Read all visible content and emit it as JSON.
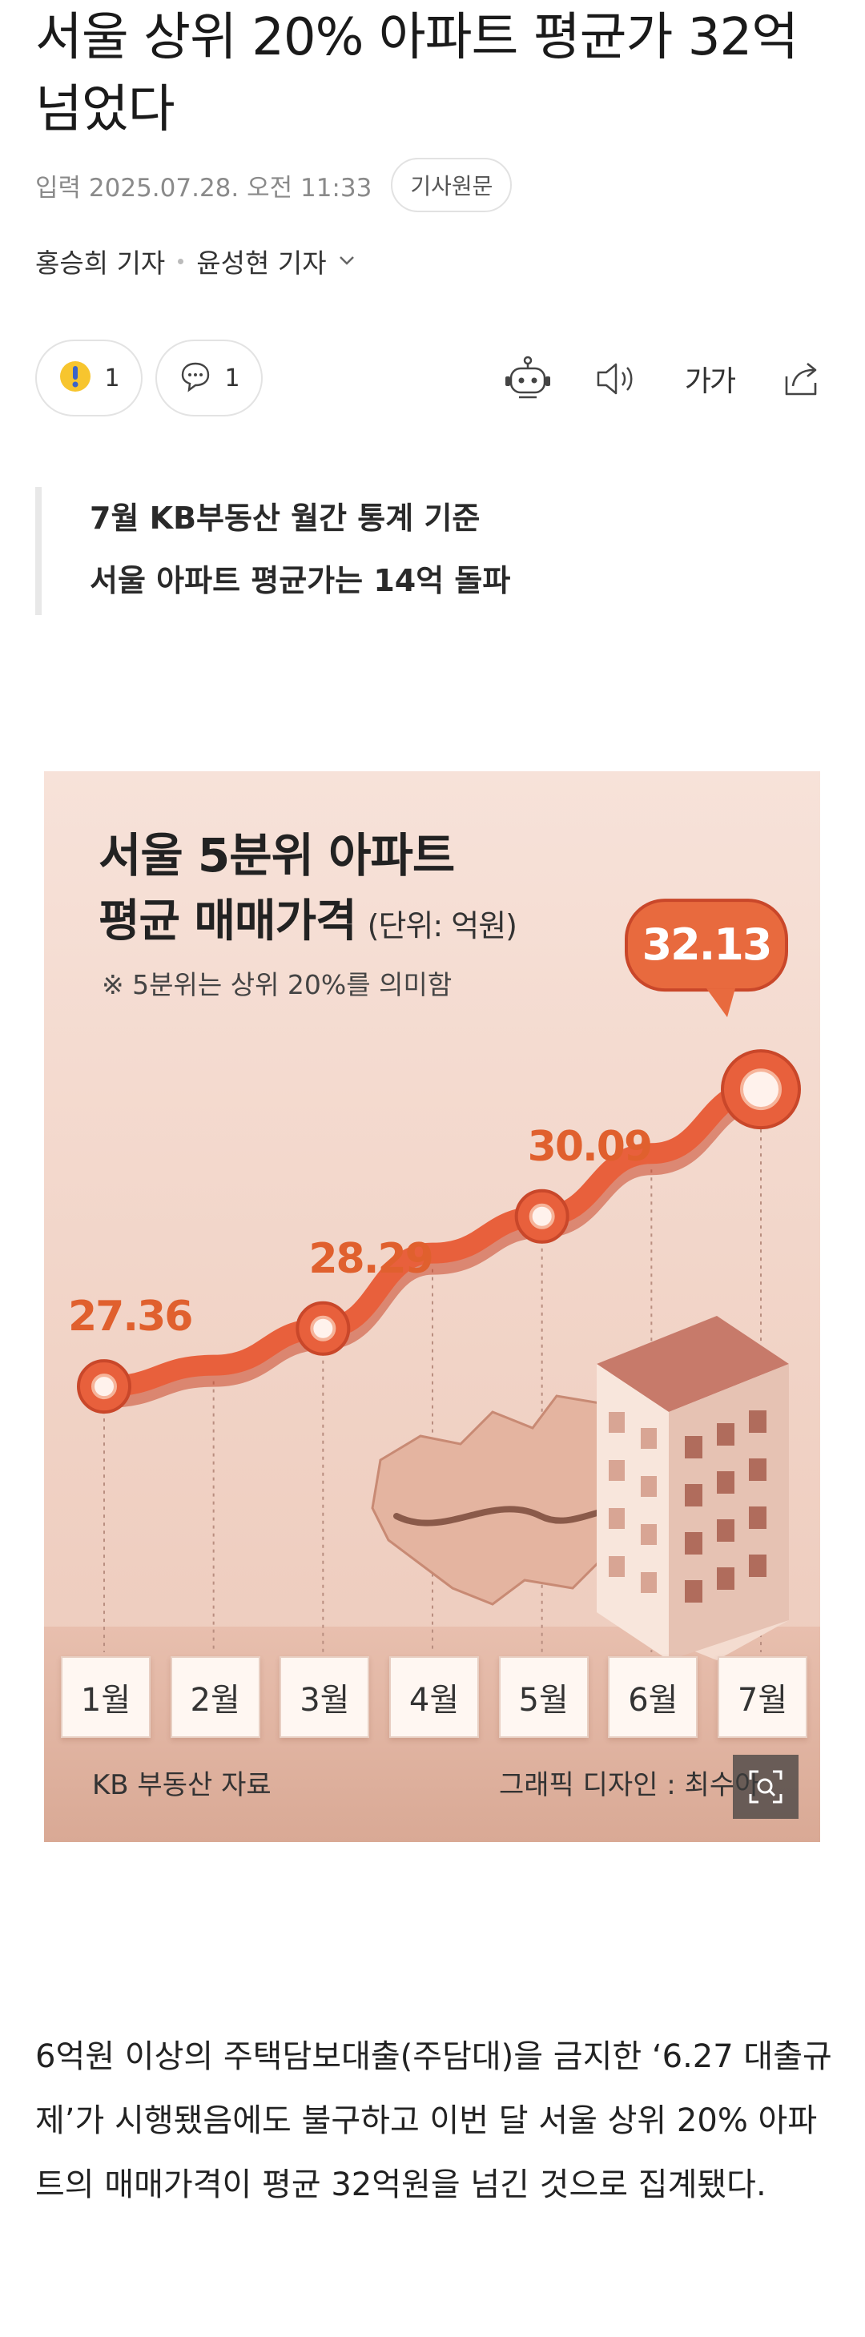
{
  "article": {
    "headline": "서울 상위 20% 아파트 평균가 32억 넘었다",
    "date": "입력 2025.07.28. 오전 11:33",
    "original_link": "기사원문",
    "authors": [
      "홍승희 기자",
      "윤성현 기자"
    ]
  },
  "actions": {
    "reaction_count": "1",
    "comment_count": "1",
    "font_size_label": "가가"
  },
  "summary": {
    "line1": "7월 KB부동산 월간 통계 기준",
    "line2": "서울 아파트 평균가는 14억 돌파"
  },
  "graphic": {
    "title": "서울 5분위 아파트",
    "subtitle": "평균 매매가격",
    "unit": "(단위: 억원)",
    "note": "※ 5분위는 상위 20%를 의미함",
    "source": "KB 부동산 자료",
    "designer": "그래픽 디자인 : 최수아"
  },
  "chart_data": {
    "type": "line",
    "categories": [
      "1월",
      "2월",
      "3월",
      "4월",
      "5월",
      "6월",
      "7월"
    ],
    "series": [
      {
        "values": [
          27.36,
          27.7,
          28.29,
          29.5,
          30.09,
          31.1,
          32.13
        ]
      }
    ],
    "labeled": [
      {
        "month": "1월",
        "value": "27.36"
      },
      {
        "month": "3월",
        "value": "28.29"
      },
      {
        "month": "5월",
        "value": "30.09"
      },
      {
        "month": "7월",
        "value": "32.13"
      }
    ],
    "ylim": [
      26.5,
      32.8
    ],
    "colors": {
      "line": "#e8603c",
      "line_dark": "#c9472a",
      "label": "#e0602e",
      "callout": "#e86a3e"
    }
  },
  "body": {
    "paragraph": "6억원 이상의 주택담보대출(주담대)을 금지한 ‘6.27 대출규제’가 시행됐음에도 불구하고 이번 달 서울 상위 20% 아파트의 매매가격이 평균 32억원을 넘긴 것으로 집계됐다."
  }
}
